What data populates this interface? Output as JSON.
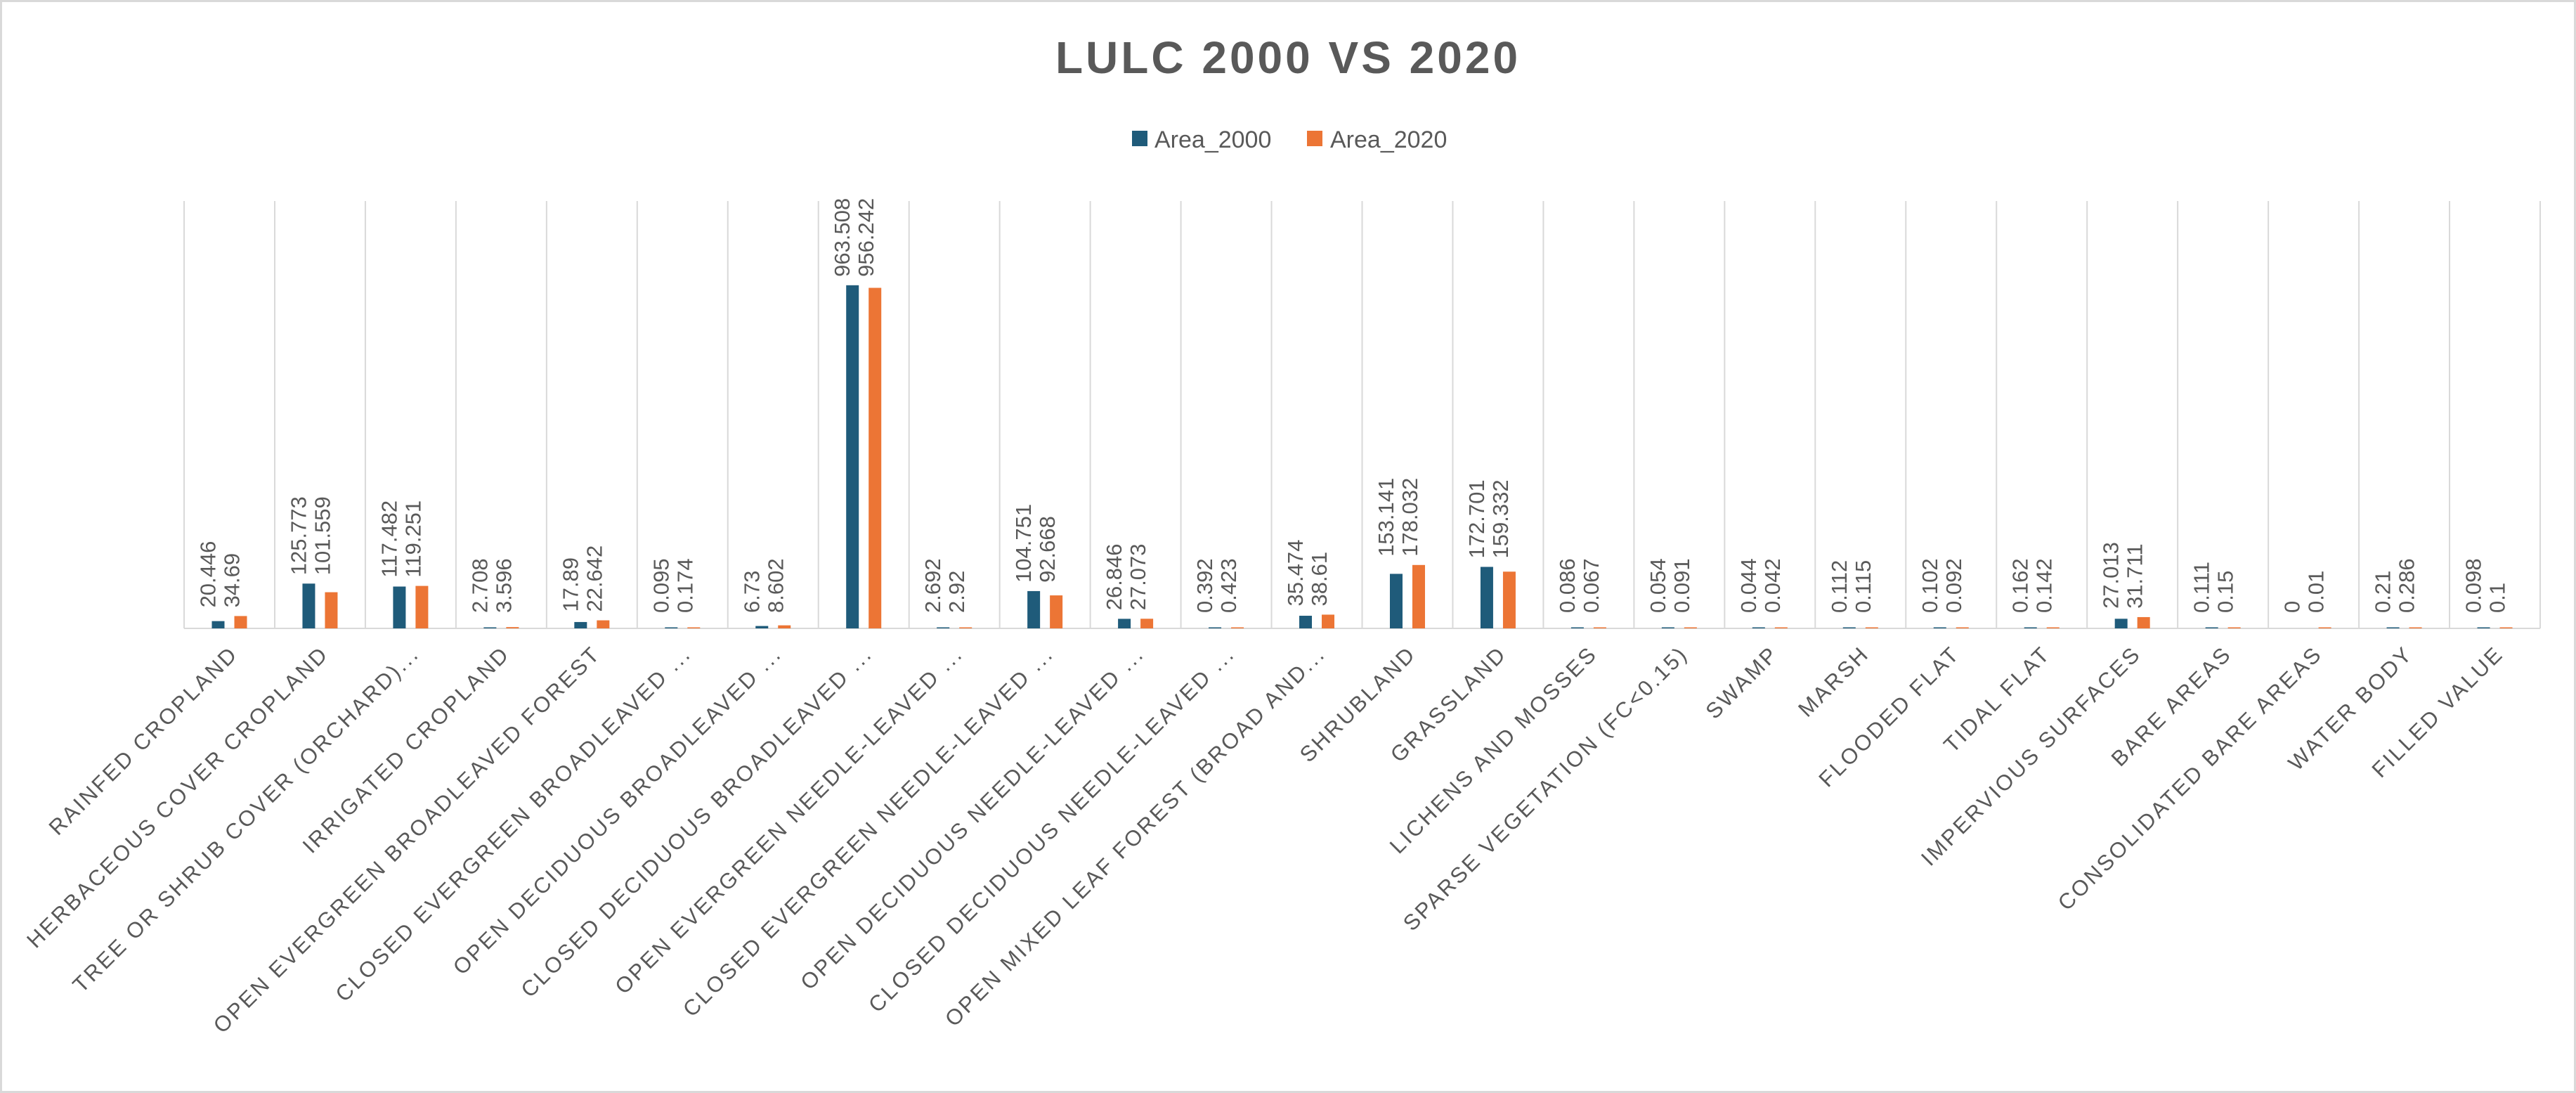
{
  "chart_data": {
    "type": "bar",
    "title": "LULC 2000 VS 2020",
    "legend_position": "top",
    "grid": "vertical category separators",
    "colors": {
      "Area_2000": "#1f5b7a",
      "Area_2020": "#ec7535"
    },
    "categories": [
      "RAINFED CROPLAND",
      "HERBACEOUS COVER CROPLAND",
      "TREE OR SHRUB COVER (ORCHARD)...",
      "IRRIGATED CROPLAND",
      "OPEN EVERGREEN BROADLEAVED FOREST",
      "CLOSED EVERGREEN BROADLEAVED ...",
      "OPEN DECIDUOUS BROADLEAVED ...",
      "CLOSED DECIDUOUS BROADLEAVED ...",
      "OPEN EVERGREEN NEEDLE-LEAVED ...",
      "CLOSED EVERGREEN NEEDLE-LEAVED ...",
      "OPEN DECIDUOUS NEEDLE-LEAVED ...",
      "CLOSED DECIDUOUS NEEDLE-LEAVED ...",
      "OPEN MIXED LEAF FOREST (BROAD AND...",
      "SHRUBLAND",
      "GRASSLAND",
      "LICHENS AND MOSSES",
      "SPARSE VEGETATION (FC<0.15)",
      "SWAMP",
      "MARSH",
      "FLOODED FLAT",
      "TIDAL FLAT",
      "IMPERVIOUS SURFACES",
      "BARE AREAS",
      "CONSOLIDATED BARE AREAS",
      "WATER BODY",
      "FILLED VALUE"
    ],
    "series": [
      {
        "name": "Area_2000",
        "values": [
          20.446,
          125.773,
          117.482,
          2.708,
          17.89,
          0.095,
          6.73,
          963.508,
          2.692,
          104.751,
          26.846,
          0.392,
          35.474,
          153.141,
          172.701,
          0.086,
          0.054,
          0.044,
          0.112,
          0.102,
          0.162,
          27.013,
          0.111,
          0,
          0.21,
          0.098
        ]
      },
      {
        "name": "Area_2020",
        "values": [
          34.69,
          101.559,
          119.251,
          3.596,
          22.642,
          0.174,
          8.602,
          956.242,
          2.92,
          92.668,
          27.073,
          0.423,
          38.61,
          178.032,
          159.332,
          0.067,
          0.091,
          0.042,
          0.115,
          0.092,
          0.142,
          31.711,
          0.15,
          0.01,
          0.286,
          0.1
        ]
      }
    ],
    "ylim": [
      0,
      1200
    ]
  }
}
